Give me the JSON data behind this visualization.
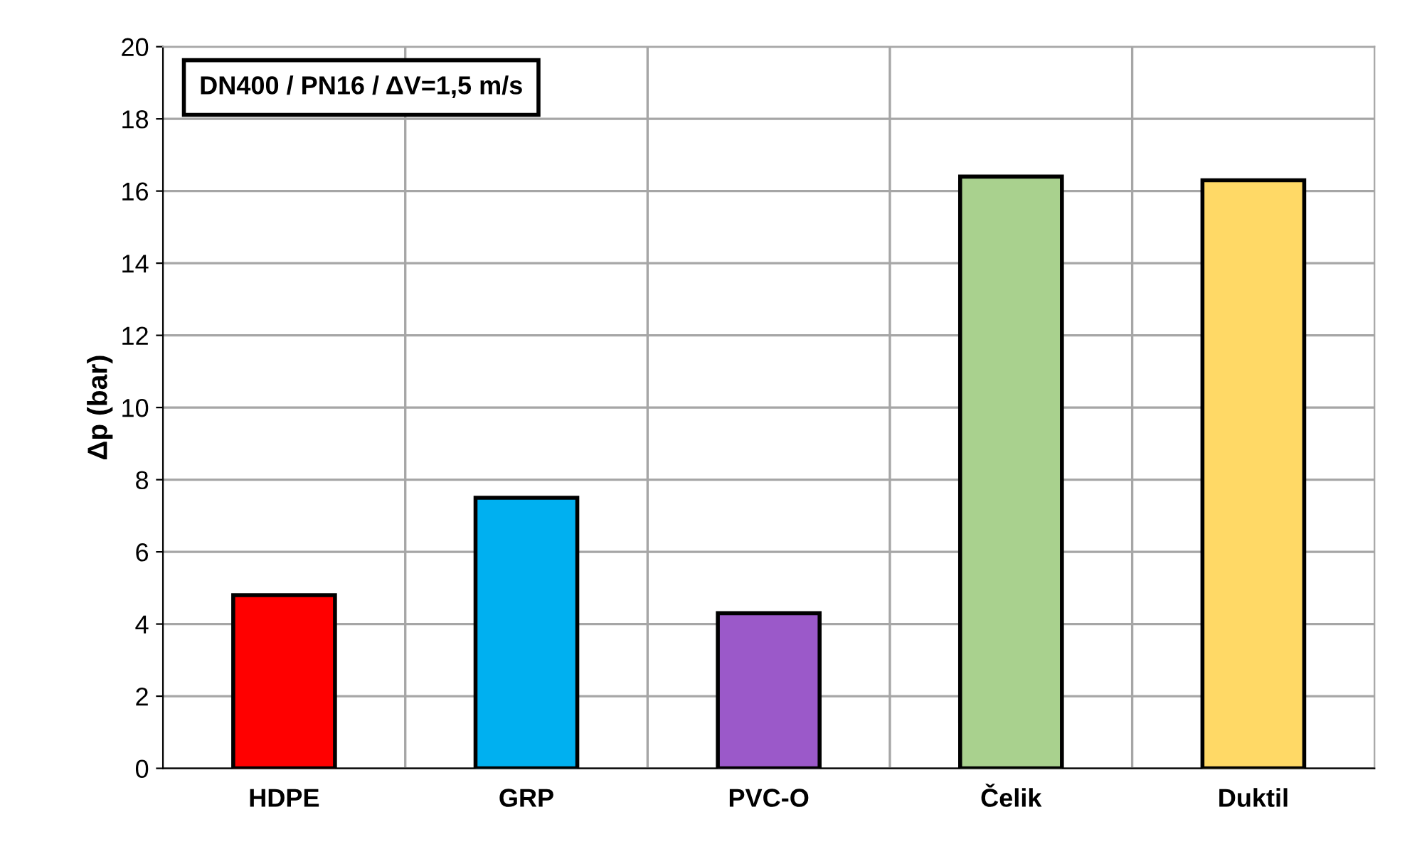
{
  "chart_data": {
    "type": "bar",
    "ylabel": "Δp (bar)",
    "categories": [
      "HDPE",
      "GRP",
      "PVC-O",
      "Čelik",
      "Duktil"
    ],
    "values": [
      4.8,
      7.5,
      4.3,
      16.4,
      16.3
    ],
    "colors": [
      "#ff0000",
      "#00b0f0",
      "#9b59c9",
      "#a9d18e",
      "#ffd966"
    ],
    "ylim": [
      0,
      20
    ],
    "yticks": [
      0,
      2,
      4,
      6,
      8,
      10,
      12,
      14,
      16,
      18,
      20
    ],
    "grid": true,
    "annotations": [
      "DN400 / PN16 / ΔV=1,5 m/s"
    ]
  }
}
